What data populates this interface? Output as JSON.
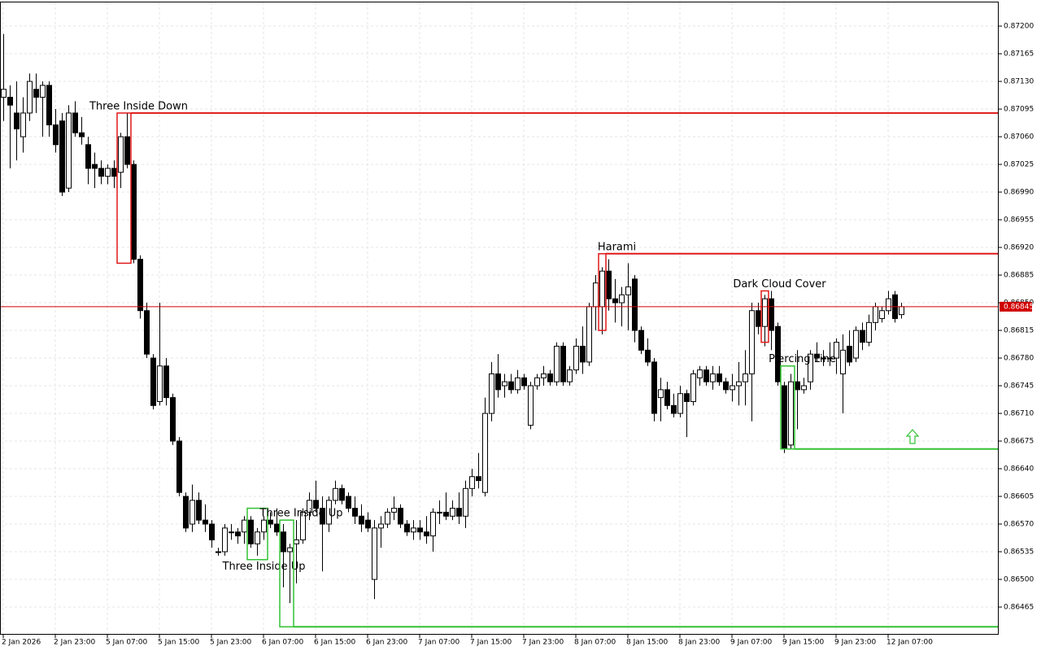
{
  "chart_data": {
    "type": "candlestick",
    "categories": [
      "2 Jan 2026",
      null,
      null,
      null,
      null,
      null,
      null,
      null,
      "2 Jan 23:00",
      null,
      null,
      null,
      null,
      null,
      null,
      null,
      "5 Jan 07:00",
      null,
      null,
      null,
      null,
      null,
      null,
      null,
      "5 Jan 15:00",
      null,
      null,
      null,
      null,
      null,
      null,
      null,
      "5 Jan 23:00",
      null,
      null,
      null,
      null,
      null,
      null,
      null,
      "6 Jan 07:00",
      null,
      null,
      null,
      null,
      null,
      null,
      null,
      "6 Jan 15:00",
      null,
      null,
      null,
      null,
      null,
      null,
      null,
      "6 Jan 23:00",
      null,
      null,
      null,
      null,
      null,
      null,
      null,
      "7 Jan 07:00",
      null,
      null,
      null,
      null,
      null,
      null,
      null,
      "7 Jan 15:00",
      null,
      null,
      null,
      null,
      null,
      null,
      null,
      "7 Jan 23:00",
      null,
      null,
      null,
      null,
      null,
      null,
      null,
      "8 Jan 07:00",
      null,
      null,
      null,
      null,
      null,
      null,
      null,
      "8 Jan 15:00",
      null,
      null,
      null,
      null,
      null,
      null,
      null,
      "8 Jan 23:00",
      null,
      null,
      null,
      null,
      null,
      null,
      null,
      "9 Jan 07:00",
      null,
      null,
      null,
      null,
      null,
      null,
      null,
      "9 Jan 15:00",
      null,
      null,
      null,
      null,
      null,
      null,
      null,
      "9 Jan 23:00",
      null,
      null,
      null,
      null,
      null,
      null,
      null,
      "12 Jan 07:00",
      null,
      null
    ],
    "open": [
      0.8711,
      0.8711,
      0.8709,
      0.8706,
      0.8709,
      0.8712,
      0.8711,
      0.87125,
      0.87075,
      0.8708,
      0.86995,
      0.8709,
      0.87065,
      0.8705,
      0.87025,
      0.8702,
      0.8701,
      0.8702,
      0.87015,
      0.8706,
      0.87025,
      0.86905,
      0.8684,
      0.8678,
      0.86725,
      0.8677,
      0.8673,
      0.86675,
      0.86605,
      0.8657,
      0.866,
      0.86575,
      0.8657,
      0.86535,
      0.86535,
      0.8656,
      0.8656,
      0.8656,
      0.86575,
      0.86545,
      0.8656,
      0.86575,
      0.8657,
      0.8656,
      0.86535,
      0.86545,
      0.8655,
      0.86585,
      0.866,
      0.8659,
      0.8657,
      0.866,
      0.86615,
      0.86605,
      0.8659,
      0.8658,
      0.86575,
      0.865,
      0.86565,
      0.8657,
      0.86585,
      0.8659,
      0.8657,
      0.8656,
      0.86565,
      0.8656,
      0.86555,
      0.86585,
      0.86585,
      0.8658,
      0.8659,
      0.8658,
      0.86615,
      0.8663,
      0.8661,
      0.8671,
      0.8676,
      0.86745,
      0.8675,
      0.8674,
      0.86755,
      0.86695,
      0.86745,
      0.86755,
      0.8676,
      0.8675,
      0.86795,
      0.8675,
      0.86765,
      0.86795,
      0.86775,
      0.86845,
      0.86845,
      0.8689,
      0.86855,
      0.8685,
      0.8686,
      0.8688,
      0.86815,
      0.8679,
      0.86775,
      0.8673,
      0.8674,
      0.8672,
      0.8671,
      0.86735,
      0.86725,
      0.86755,
      0.86765,
      0.8675,
      0.8676,
      0.8675,
      0.8674,
      0.86745,
      0.8675,
      0.8676,
      0.8684,
      0.8682,
      0.86855,
      0.8682,
      0.86745,
      0.8667,
      0.8675,
      0.8674,
      0.8675,
      0.86785,
      0.8678,
      0.8678,
      0.8678,
      0.8676,
      0.86795,
      0.8678,
      0.86815,
      0.868,
      0.86825,
      0.8683,
      0.8684,
      0.8686,
      0.86835
    ],
    "high": [
      0.8719,
      0.87125,
      0.8713,
      0.8711,
      0.8714,
      0.8714,
      0.8713,
      0.8713,
      0.87095,
      0.8709,
      0.871,
      0.87105,
      0.87085,
      0.8706,
      0.8704,
      0.8703,
      0.87025,
      0.8703,
      0.87065,
      0.8709,
      0.8703,
      0.8691,
      0.8685,
      0.86785,
      0.8685,
      0.8678,
      0.86735,
      0.8668,
      0.8661,
      0.8662,
      0.8661,
      0.86595,
      0.86575,
      0.8654,
      0.8657,
      0.8657,
      0.86565,
      0.8658,
      0.8658,
      0.86565,
      0.8658,
      0.86585,
      0.8659,
      0.8657,
      0.86545,
      0.86575,
      0.8659,
      0.8661,
      0.86625,
      0.86605,
      0.86605,
      0.86625,
      0.8662,
      0.8661,
      0.86605,
      0.86595,
      0.86585,
      0.86575,
      0.8658,
      0.8659,
      0.86605,
      0.86595,
      0.86575,
      0.86575,
      0.86575,
      0.8658,
      0.8659,
      0.866,
      0.8661,
      0.866,
      0.8661,
      0.86625,
      0.8664,
      0.8666,
      0.8673,
      0.86775,
      0.86785,
      0.8676,
      0.8676,
      0.86765,
      0.8676,
      0.8675,
      0.8676,
      0.8677,
      0.86765,
      0.868,
      0.868,
      0.8677,
      0.86805,
      0.8682,
      0.8685,
      0.86885,
      0.86895,
      0.86905,
      0.8688,
      0.8687,
      0.869,
      0.86885,
      0.8682,
      0.86805,
      0.8678,
      0.86755,
      0.8675,
      0.86735,
      0.86745,
      0.8674,
      0.86765,
      0.8677,
      0.8677,
      0.8677,
      0.8677,
      0.86755,
      0.8676,
      0.86775,
      0.8679,
      0.8685,
      0.8685,
      0.8686,
      0.86865,
      0.86825,
      0.8675,
      0.8676,
      0.8679,
      0.86755,
      0.8679,
      0.868,
      0.8679,
      0.868,
      0.86805,
      0.8681,
      0.86815,
      0.8682,
      0.86825,
      0.86835,
      0.8685,
      0.86845,
      0.86865,
      0.86865,
      0.8685
    ],
    "low": [
      0.8708,
      0.8702,
      0.8703,
      0.8704,
      0.8708,
      0.8709,
      0.8706,
      0.8706,
      0.8704,
      0.86985,
      0.8699,
      0.8706,
      0.8705,
      0.87,
      0.86995,
      0.87,
      0.87,
      0.86995,
      0.86995,
      0.8702,
      0.869,
      0.8683,
      0.8678,
      0.86715,
      0.8672,
      0.8672,
      0.8667,
      0.86605,
      0.8656,
      0.8656,
      0.8657,
      0.8656,
      0.8654,
      0.8653,
      0.8653,
      0.8655,
      0.86545,
      0.86545,
      0.8654,
      0.8653,
      0.8655,
      0.86565,
      0.86555,
      0.8649,
      0.8647,
      0.86495,
      0.86545,
      0.86575,
      0.86585,
      0.8651,
      0.8656,
      0.86595,
      0.86595,
      0.86585,
      0.8657,
      0.8656,
      0.8656,
      0.86475,
      0.8654,
      0.86565,
      0.86575,
      0.86565,
      0.86555,
      0.8655,
      0.8655,
      0.86545,
      0.86535,
      0.8657,
      0.86575,
      0.86575,
      0.8657,
      0.86565,
      0.86605,
      0.86615,
      0.86605,
      0.867,
      0.8673,
      0.8673,
      0.86735,
      0.86735,
      0.8674,
      0.8669,
      0.8674,
      0.86745,
      0.86745,
      0.86745,
      0.86745,
      0.86745,
      0.8676,
      0.8676,
      0.8677,
      0.86815,
      0.8681,
      0.8684,
      0.86825,
      0.8682,
      0.86815,
      0.868,
      0.86785,
      0.8677,
      0.867,
      0.867,
      0.86715,
      0.86705,
      0.86705,
      0.8668,
      0.8672,
      0.86745,
      0.86745,
      0.8674,
      0.86745,
      0.86735,
      0.86725,
      0.8672,
      0.8672,
      0.867,
      0.8681,
      0.86795,
      0.8679,
      0.86745,
      0.8666,
      0.86665,
      0.8669,
      0.86735,
      0.8674,
      0.86775,
      0.8677,
      0.8677,
      0.8676,
      0.8671,
      0.8677,
      0.86775,
      0.8679,
      0.86795,
      0.86815,
      0.86825,
      0.86835,
      0.86825,
      0.8683
    ],
    "close": [
      0.8712,
      0.871,
      0.8707,
      0.8709,
      0.8713,
      0.8711,
      0.87125,
      0.87075,
      0.8705,
      0.8699,
      0.8709,
      0.87065,
      0.8706,
      0.8702,
      0.8702,
      0.8701,
      0.8702,
      0.8701,
      0.8706,
      0.87025,
      0.86905,
      0.8684,
      0.86785,
      0.8672,
      0.8677,
      0.8673,
      0.86675,
      0.8661,
      0.86565,
      0.866,
      0.86575,
      0.8657,
      0.8655,
      0.86535,
      0.86565,
      0.8656,
      0.86555,
      0.86575,
      0.86545,
      0.8656,
      0.86575,
      0.8657,
      0.8656,
      0.86535,
      0.8654,
      0.8655,
      0.86585,
      0.866,
      0.8659,
      0.8657,
      0.866,
      0.86615,
      0.866,
      0.8659,
      0.8658,
      0.8657,
      0.86565,
      0.86565,
      0.8657,
      0.86585,
      0.8659,
      0.8657,
      0.8656,
      0.86565,
      0.8656,
      0.86555,
      0.86585,
      0.86585,
      0.8658,
      0.8659,
      0.8658,
      0.86615,
      0.8663,
      0.86625,
      0.8671,
      0.8676,
      0.8674,
      0.8675,
      0.8674,
      0.86755,
      0.86745,
      0.86745,
      0.86755,
      0.8676,
      0.8675,
      0.86795,
      0.8675,
      0.86765,
      0.86795,
      0.86775,
      0.86845,
      0.86875,
      0.8689,
      0.86855,
      0.8685,
      0.8686,
      0.8687,
      0.86815,
      0.8679,
      0.86775,
      0.8671,
      0.8674,
      0.8672,
      0.8671,
      0.86735,
      0.86725,
      0.8676,
      0.86765,
      0.8675,
      0.8676,
      0.8675,
      0.8674,
      0.86745,
      0.8675,
      0.8676,
      0.8684,
      0.8682,
      0.86855,
      0.86815,
      0.8675,
      0.86665,
      0.8675,
      0.8674,
      0.86745,
      0.86785,
      0.8678,
      0.8678,
      0.8678,
      0.868,
      0.8679,
      0.86775,
      0.86815,
      0.868,
      0.86825,
      0.86845,
      0.8684,
      0.86855,
      0.8683,
      0.86845
    ],
    "up_color": "#ffffff",
    "down_color": "#000000",
    "outline_color": "#000000",
    "ylim": [
      0.8643,
      0.87233
    ],
    "yticks": [
      {
        "value": 0.872,
        "label": "0.87200"
      },
      0.87165,
      {
        "value": 0.8713,
        "label": "0.87130"
      },
      0.87095,
      {
        "value": 0.8706,
        "label": "0.87060"
      },
      0.87025,
      {
        "value": 0.8699,
        "label": "0.86990"
      },
      0.86955,
      {
        "value": 0.8692,
        "label": "0.86920"
      },
      0.86885,
      {
        "value": 0.8685,
        "label": "0.86850"
      },
      0.86815,
      {
        "value": 0.8678,
        "label": "0.86780"
      },
      0.86745,
      {
        "value": 0.8671,
        "label": "0.86710"
      },
      0.86675,
      {
        "value": 0.8664,
        "label": "0.86640"
      },
      0.86605,
      {
        "value": 0.8657,
        "label": "0.86570"
      },
      0.86535,
      {
        "value": 0.865,
        "label": "0.86500"
      },
      0.86465
    ],
    "grid": true,
    "last_price": 0.86845,
    "last_price_color": "#d00000",
    "patterns": [
      {
        "name": "Three Inside Down",
        "color": "#e01818",
        "start": 18,
        "end": 19,
        "box": [
          0.869,
          0.8709
        ],
        "level": 0.8709
      },
      {
        "name": "Three Inside Up",
        "color": "#33c233",
        "start": 38,
        "end": 40,
        "box": [
          0.86525,
          0.8659
        ]
      },
      {
        "name": "Three Inside Up",
        "color": "#33c233",
        "start": 43,
        "end": 44,
        "box": [
          0.8644,
          0.86575
        ],
        "level": 0.8644
      },
      {
        "name": "Harami",
        "color": "#e01818",
        "start": 92,
        "end": 92,
        "box": [
          0.86815,
          0.86912
        ],
        "level": 0.86912
      },
      {
        "name": "Dark Cloud Cover",
        "color": "#e01818",
        "start": 117,
        "end": 117,
        "box": [
          0.868,
          0.86865
        ]
      },
      {
        "name": "Piercing Line",
        "color": "#33c233",
        "start": 120,
        "end": 121,
        "box": [
          0.86665,
          0.8677
        ],
        "level": 0.86665
      }
    ]
  }
}
